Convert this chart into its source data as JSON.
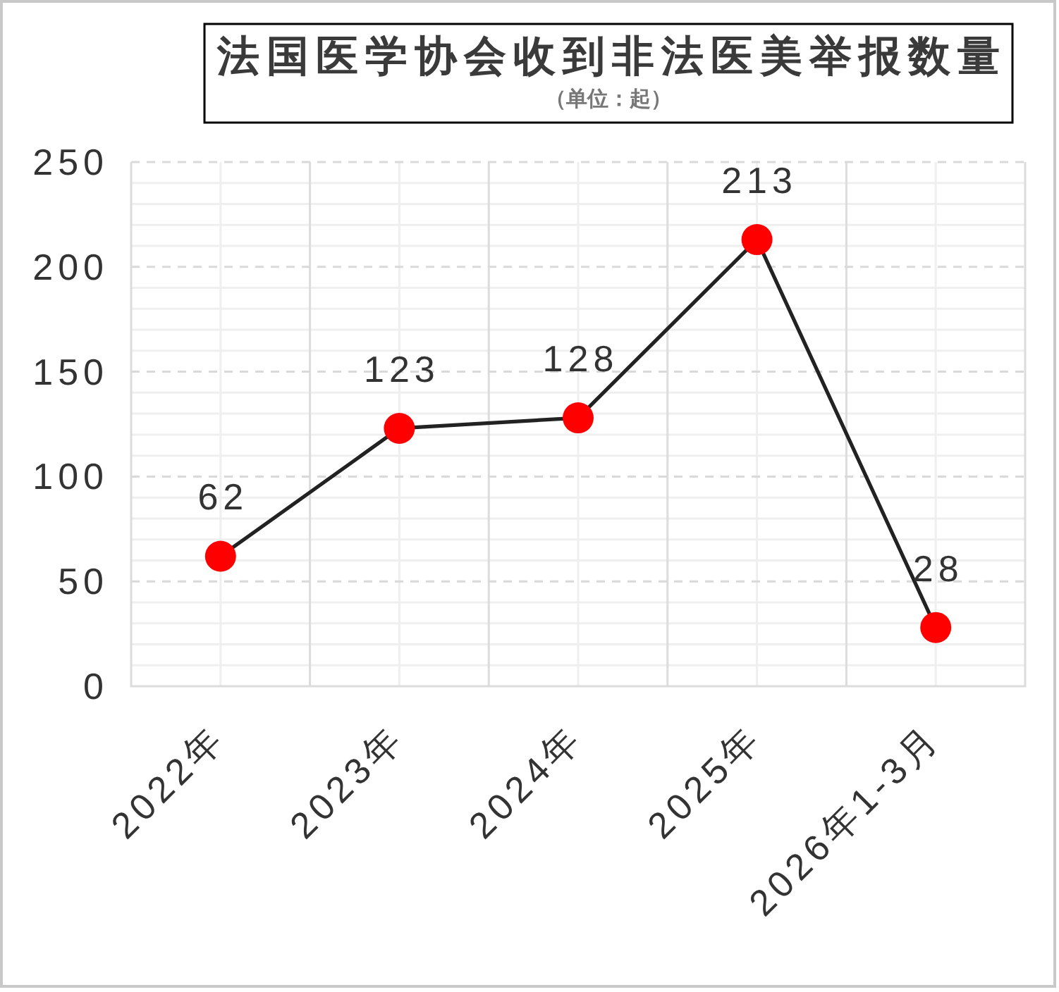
{
  "chart_data": {
    "type": "line",
    "title": "法国医学协会收到非法医美举报数量",
    "subtitle": "（单位：起）",
    "categories": [
      "2022年",
      "2023年",
      "2024年",
      "2025年",
      "2026年1-3月"
    ],
    "series": [
      {
        "color": "#222222",
        "colors": [
          "#ff0000",
          "#ff0000",
          "#ff0000",
          "#ff0000",
          "#ff0000"
        ],
        "values": [
          62,
          123,
          128,
          213,
          28
        ]
      }
    ],
    "ylim": [
      0,
      250
    ],
    "yticks": [
      0,
      50,
      100,
      150,
      200,
      250
    ],
    "grid": true,
    "marker": "circle",
    "line_style": "solid",
    "data_labels": true
  }
}
